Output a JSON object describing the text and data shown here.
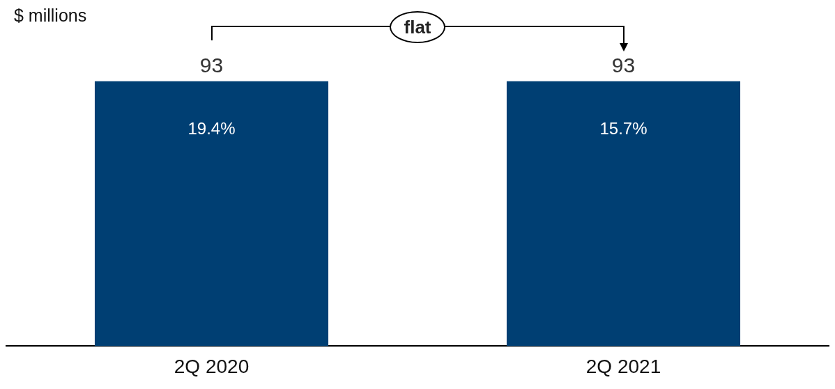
{
  "chart_data": {
    "type": "bar",
    "ylabel": "$ millions",
    "categories": [
      "2Q 2020",
      "2Q 2021"
    ],
    "values": [
      93,
      93
    ],
    "color": "#003f73",
    "data_labels": true,
    "legend": false,
    "annotations": [
      "flat",
      "19.4%",
      "15.7%"
    ]
  }
}
